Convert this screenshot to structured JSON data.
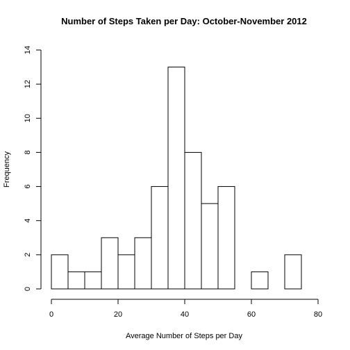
{
  "chart_data": {
    "type": "bar",
    "title": "Number of Steps Taken per Day: October-November 2012",
    "xlabel": "Average Number of Steps per Day",
    "ylabel": "Frequency",
    "bin_edges": [
      0,
      5,
      10,
      15,
      20,
      25,
      30,
      35,
      40,
      45,
      50,
      55,
      60,
      65,
      70,
      75
    ],
    "values": [
      2,
      1,
      1,
      3,
      2,
      3,
      6,
      13,
      8,
      5,
      6,
      0,
      1,
      0,
      2
    ],
    "xlim": [
      0,
      80
    ],
    "ylim": [
      0,
      14
    ],
    "x_ticks": [
      0,
      20,
      40,
      60,
      80
    ],
    "y_ticks": [
      0,
      2,
      4,
      6,
      8,
      10,
      12,
      14
    ],
    "grid": false,
    "legend": "none"
  }
}
